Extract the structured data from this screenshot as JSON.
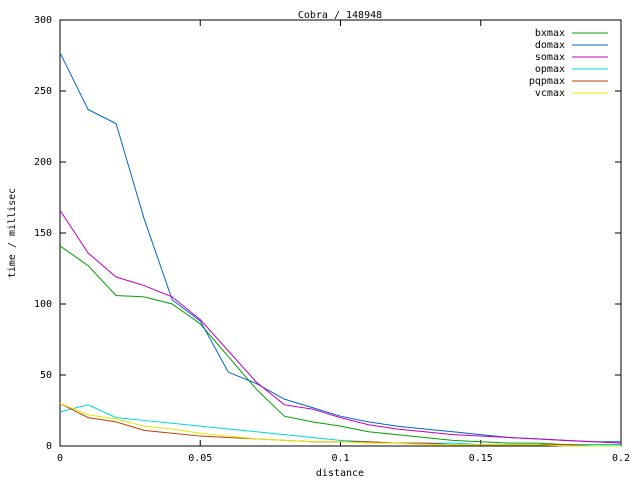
{
  "chart_data": {
    "type": "line",
    "title": "Cobra / 148948",
    "x_label": "distance",
    "y_label": "time / millisec",
    "x": [
      0,
      0.01,
      0.02,
      0.03,
      0.04,
      0.05,
      0.06,
      0.07,
      0.08,
      0.09,
      0.1,
      0.11,
      0.12,
      0.13,
      0.14,
      0.15,
      0.16,
      0.17,
      0.18,
      0.19,
      0.2
    ],
    "series": [
      {
        "name": "bxmax",
        "color": "#00a000",
        "values": [
          141,
          127,
          106,
          105,
          100,
          86,
          63,
          40,
          21,
          17,
          14,
          10,
          8,
          6,
          4,
          3,
          2,
          2,
          1,
          1,
          1
        ]
      },
      {
        "name": "domax",
        "color": "#0066cc",
        "values": [
          277,
          237,
          227,
          160,
          103,
          88,
          52,
          44,
          33,
          27,
          21,
          17,
          14,
          12,
          10,
          8,
          6,
          5,
          4,
          3,
          3
        ]
      },
      {
        "name": "somax",
        "color": "#c000c0",
        "values": [
          166,
          136,
          119,
          113,
          105,
          89,
          67,
          45,
          29,
          26,
          20,
          15,
          12,
          10,
          8,
          7,
          6,
          5,
          4,
          3,
          2
        ]
      },
      {
        "name": "opmax",
        "color": "#00d8d8",
        "values": [
          24,
          29,
          20,
          18,
          16,
          14,
          12,
          10,
          8,
          6,
          4,
          3,
          2,
          2,
          2,
          1,
          1,
          1,
          1,
          1,
          1
        ]
      },
      {
        "name": "pqpmax",
        "color": "#c04000",
        "values": [
          30,
          20,
          17,
          11,
          9,
          7,
          6,
          5,
          4,
          3,
          3,
          3,
          2,
          2,
          1,
          1,
          1,
          1,
          1,
          0,
          0
        ]
      },
      {
        "name": "vcmax",
        "color": "#e8e800",
        "values": [
          30,
          22,
          19,
          14,
          12,
          9,
          7,
          5,
          4,
          3,
          3,
          2,
          2,
          1,
          1,
          1,
          1,
          1,
          0,
          0,
          0
        ]
      }
    ],
    "xlim": [
      0,
      0.2
    ],
    "xticks": [
      0,
      0.05,
      0.1,
      0.15,
      0.2
    ],
    "ylim": [
      0,
      300
    ],
    "yticks": [
      0,
      50,
      100,
      150,
      200,
      250,
      300
    ],
    "legend": "top-right",
    "grid": false
  }
}
